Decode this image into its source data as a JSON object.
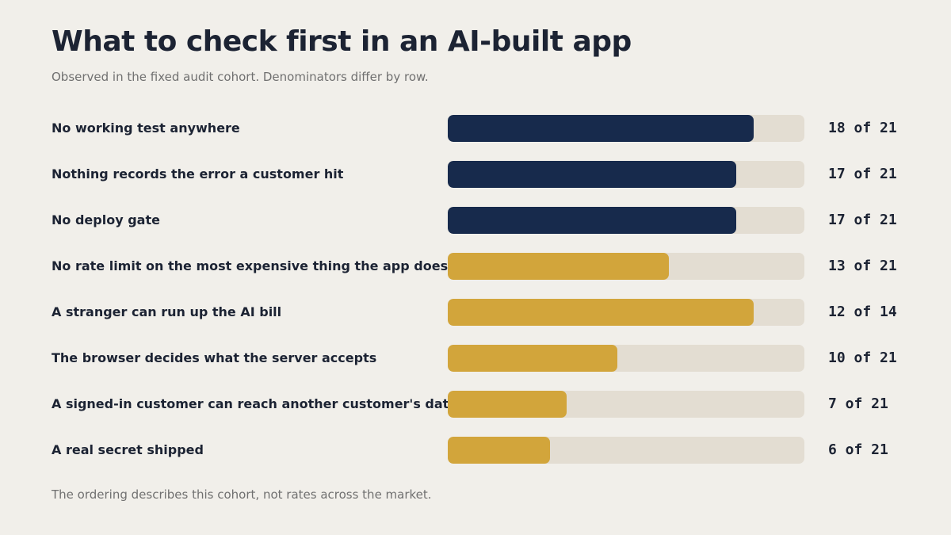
{
  "chart_data": {
    "type": "bar",
    "orientation": "horizontal",
    "title": "What to check first in an AI-built app",
    "subtitle": "Observed in the fixed audit cohort. Denominators differ by row.",
    "footnote": "The ordering describes this cohort, not rates across the market.",
    "categories": [
      "No working test anywhere",
      "Nothing records the error a customer hit",
      "No deploy gate",
      "No rate limit on the most expensive thing the app does",
      "A stranger can run up the AI bill",
      "The browser decides what the server accepts",
      "A signed-in customer can reach another customer's data",
      "A real secret shipped"
    ],
    "series": [
      {
        "values": [
          18,
          17,
          17,
          13,
          12,
          10,
          7,
          6
        ],
        "denominators": [
          21,
          21,
          21,
          21,
          14,
          21,
          21,
          21
        ]
      }
    ],
    "value_labels": [
      "18 of 21",
      "17 of 21",
      "17 of 21",
      "13 of 21",
      "12 of 14",
      "10 of 21",
      "7 of 21",
      "6 of 21"
    ],
    "bar_colors": [
      "#172a4c",
      "#172a4c",
      "#172a4c",
      "#d2a53b",
      "#d2a53b",
      "#d2a53b",
      "#d2a53b",
      "#d2a53b"
    ],
    "track_color": "#e3ddd2",
    "xlim": [
      0,
      1
    ],
    "grid": false,
    "legend": "none"
  }
}
